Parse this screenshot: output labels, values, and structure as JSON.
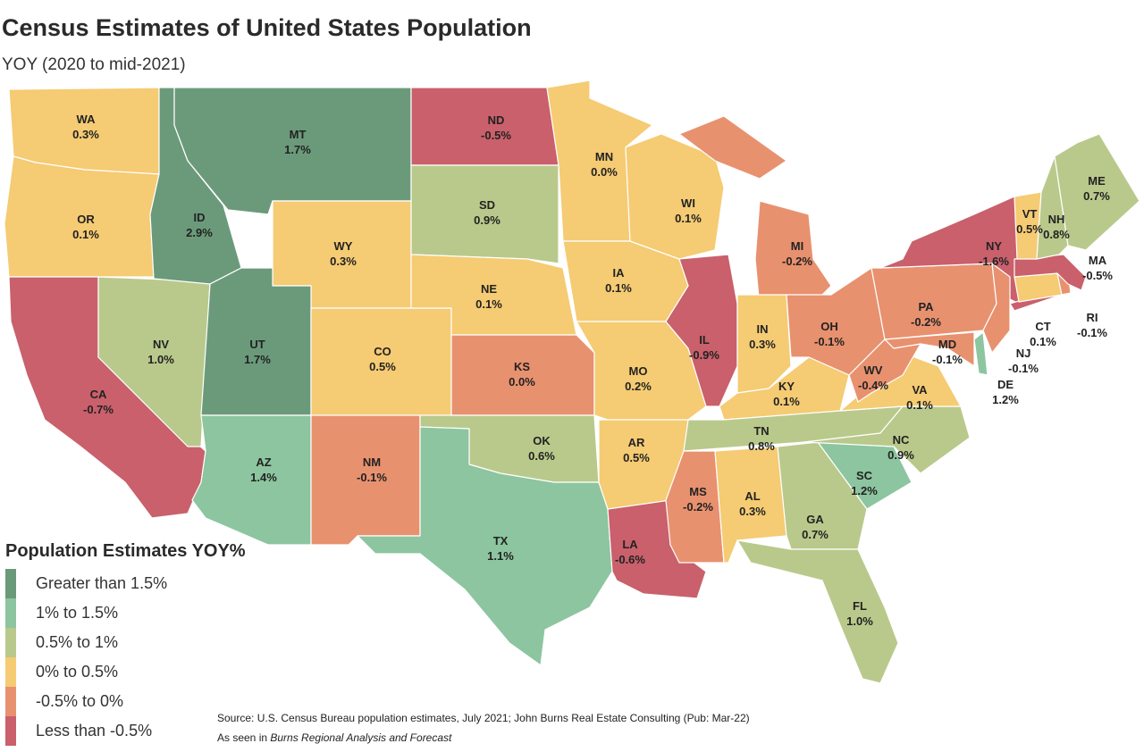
{
  "title": "Census Estimates of United States Population",
  "subtitle": "YOY (2020 to mid-2021)",
  "legend": {
    "title": "Population Estimates YOY%",
    "items": [
      {
        "label": "Greater than 1.5%",
        "color": "#6b9a7b"
      },
      {
        "label": "1% to 1.5%",
        "color": "#8cc59f"
      },
      {
        "label": "0.5% to 1%",
        "color": "#b9c98b"
      },
      {
        "label": "0% to 0.5%",
        "color": "#f5cb73"
      },
      {
        "label": "-0.5% to 0%",
        "color": "#e8916f"
      },
      {
        "label": "Less than -0.5%",
        "color": "#c9606b"
      }
    ]
  },
  "states": [
    {
      "abbr": "WA",
      "value": "0.3%",
      "bucket": 3
    },
    {
      "abbr": "OR",
      "value": "0.1%",
      "bucket": 3
    },
    {
      "abbr": "CA",
      "value": "-0.7%",
      "bucket": 5
    },
    {
      "abbr": "NV",
      "value": "1.0%",
      "bucket": 2
    },
    {
      "abbr": "ID",
      "value": "2.9%",
      "bucket": 0
    },
    {
      "abbr": "MT",
      "value": "1.7%",
      "bucket": 0
    },
    {
      "abbr": "WY",
      "value": "0.3%",
      "bucket": 3
    },
    {
      "abbr": "UT",
      "value": "1.7%",
      "bucket": 0
    },
    {
      "abbr": "CO",
      "value": "0.5%",
      "bucket": 3
    },
    {
      "abbr": "AZ",
      "value": "1.4%",
      "bucket": 1
    },
    {
      "abbr": "NM",
      "value": "-0.1%",
      "bucket": 4
    },
    {
      "abbr": "ND",
      "value": "-0.5%",
      "bucket": 5
    },
    {
      "abbr": "SD",
      "value": "0.9%",
      "bucket": 2
    },
    {
      "abbr": "NE",
      "value": "0.1%",
      "bucket": 3
    },
    {
      "abbr": "KS",
      "value": "0.0%",
      "bucket": 4
    },
    {
      "abbr": "OK",
      "value": "0.6%",
      "bucket": 2
    },
    {
      "abbr": "TX",
      "value": "1.1%",
      "bucket": 1
    },
    {
      "abbr": "MN",
      "value": "0.0%",
      "bucket": 3
    },
    {
      "abbr": "IA",
      "value": "0.1%",
      "bucket": 3
    },
    {
      "abbr": "MO",
      "value": "0.2%",
      "bucket": 3
    },
    {
      "abbr": "AR",
      "value": "0.5%",
      "bucket": 3
    },
    {
      "abbr": "LA",
      "value": "-0.6%",
      "bucket": 5
    },
    {
      "abbr": "WI",
      "value": "0.1%",
      "bucket": 3
    },
    {
      "abbr": "IL",
      "value": "-0.9%",
      "bucket": 5
    },
    {
      "abbr": "MI",
      "value": "-0.2%",
      "bucket": 4
    },
    {
      "abbr": "IN",
      "value": "0.3%",
      "bucket": 3
    },
    {
      "abbr": "OH",
      "value": "-0.1%",
      "bucket": 4
    },
    {
      "abbr": "KY",
      "value": "0.1%",
      "bucket": 3
    },
    {
      "abbr": "TN",
      "value": "0.8%",
      "bucket": 2
    },
    {
      "abbr": "MS",
      "value": "-0.2%",
      "bucket": 4
    },
    {
      "abbr": "AL",
      "value": "0.3%",
      "bucket": 3
    },
    {
      "abbr": "GA",
      "value": "0.7%",
      "bucket": 2
    },
    {
      "abbr": "FL",
      "value": "1.0%",
      "bucket": 2
    },
    {
      "abbr": "SC",
      "value": "1.2%",
      "bucket": 1
    },
    {
      "abbr": "NC",
      "value": "0.9%",
      "bucket": 2
    },
    {
      "abbr": "VA",
      "value": "0.1%",
      "bucket": 3
    },
    {
      "abbr": "WV",
      "value": "-0.4%",
      "bucket": 4
    },
    {
      "abbr": "PA",
      "value": "-0.2%",
      "bucket": 4
    },
    {
      "abbr": "NY",
      "value": "-1.6%",
      "bucket": 5
    },
    {
      "abbr": "NJ",
      "value": "-0.1%",
      "bucket": 4
    },
    {
      "abbr": "MD",
      "value": "-0.1%",
      "bucket": 4
    },
    {
      "abbr": "DE",
      "value": "1.2%",
      "bucket": 1
    },
    {
      "abbr": "CT",
      "value": "0.1%",
      "bucket": 3
    },
    {
      "abbr": "RI",
      "value": "-0.1%",
      "bucket": 4
    },
    {
      "abbr": "MA",
      "value": "-0.5%",
      "bucket": 5
    },
    {
      "abbr": "VT",
      "value": "0.5%",
      "bucket": 3
    },
    {
      "abbr": "NH",
      "value": "0.8%",
      "bucket": 2
    },
    {
      "abbr": "ME",
      "value": "0.7%",
      "bucket": 2
    }
  ],
  "source": {
    "line1": "Source: U.S. Census Bureau population estimates, July 2021; John Burns Real Estate Consulting (Pub: Mar-22)",
    "line2_prefix": "As seen in ",
    "line2_italic": "Burns Regional Analysis and Forecast"
  }
}
